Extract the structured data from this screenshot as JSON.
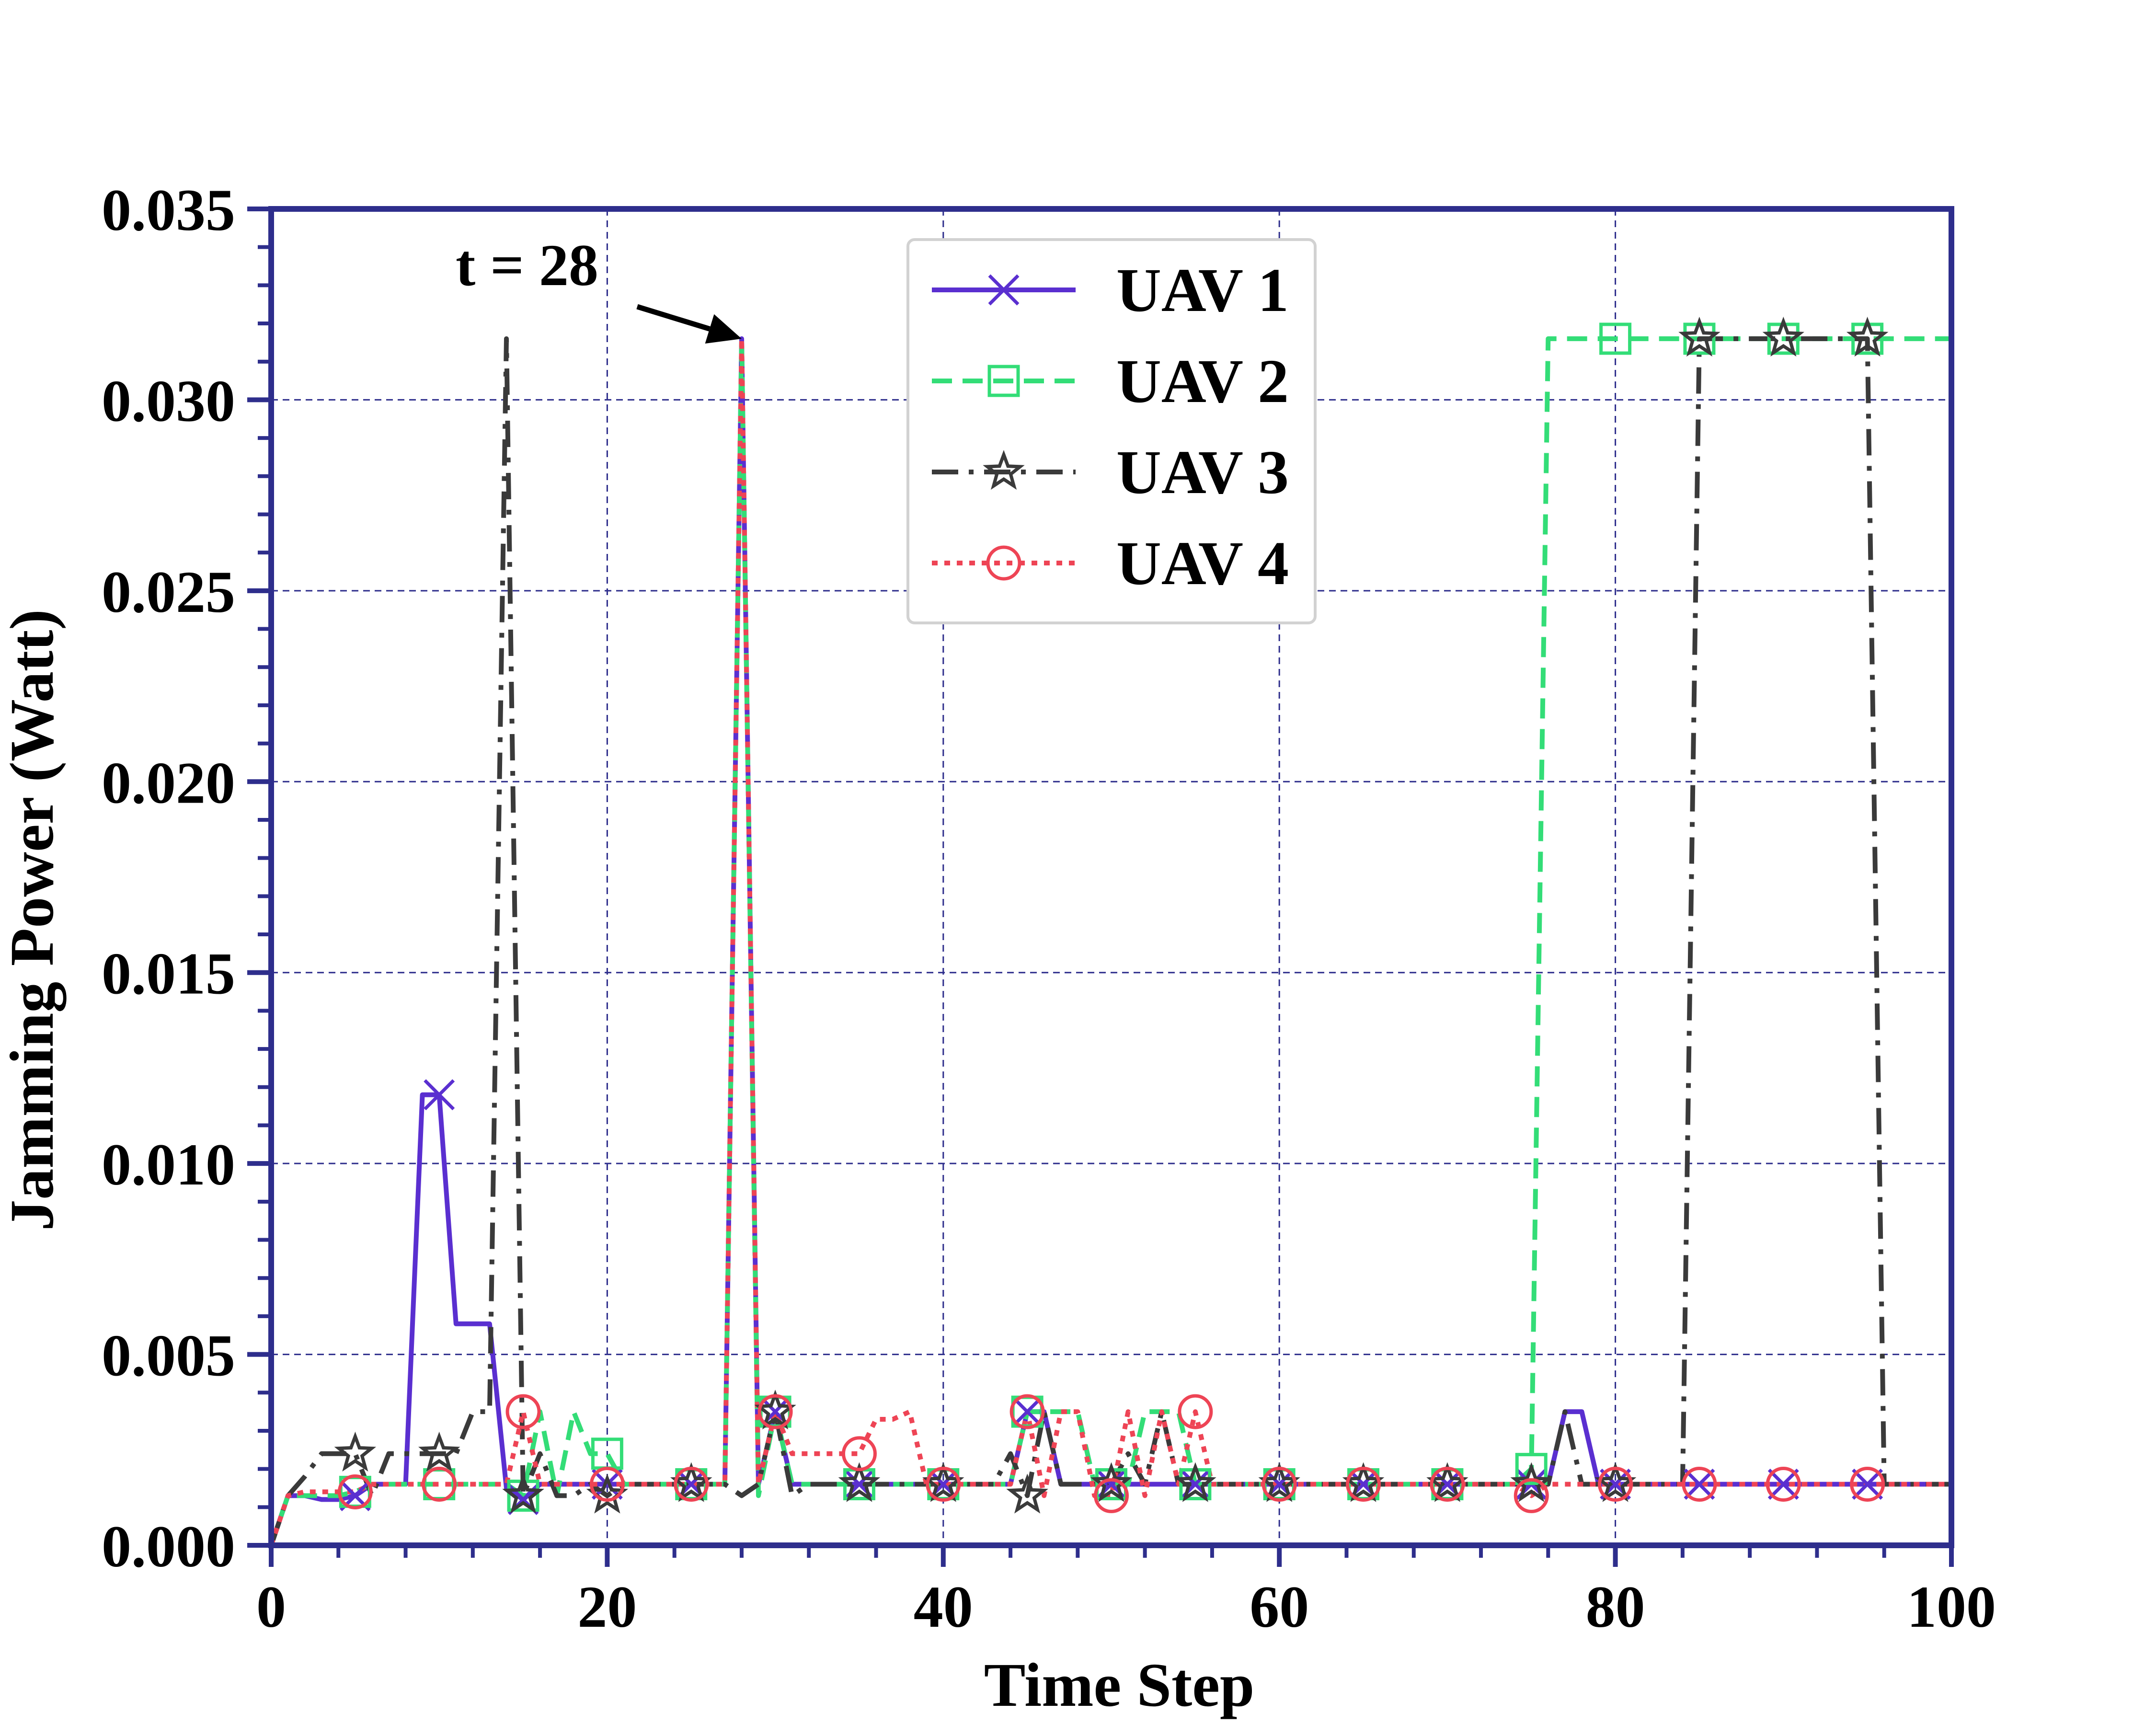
{
  "chart_data": {
    "type": "line",
    "title": "",
    "xlabel": "Time Step",
    "ylabel": "Jamming Power (Watt)",
    "xlim": [
      0,
      100
    ],
    "ylim": [
      0,
      0.035
    ],
    "xticks": [
      "0",
      "20",
      "40",
      "60",
      "80",
      "100"
    ],
    "yticks": [
      "0.000",
      "0.005",
      "0.010",
      "0.015",
      "0.020",
      "0.025",
      "0.030",
      "0.035"
    ],
    "grid": true,
    "legend_position": "top-center",
    "annotation": {
      "text": "t = 28",
      "x": 28,
      "y": 0.0316
    },
    "series": [
      {
        "name": "UAV 1",
        "color": "#5a2fd0",
        "line_style": "solid",
        "marker": "x",
        "x": [
          0,
          1,
          2,
          3,
          4,
          5,
          6,
          7,
          8,
          9,
          10,
          11,
          12,
          13,
          14,
          15,
          16,
          17,
          18,
          19,
          20,
          21,
          22,
          23,
          24,
          25,
          26,
          27,
          28,
          29,
          30,
          31,
          32,
          33,
          34,
          35,
          36,
          37,
          38,
          39,
          40,
          41,
          42,
          43,
          44,
          45,
          46,
          47,
          48,
          49,
          50,
          51,
          52,
          53,
          54,
          55,
          56,
          57,
          58,
          59,
          60,
          61,
          62,
          63,
          64,
          65,
          66,
          67,
          68,
          69,
          70,
          71,
          72,
          73,
          74,
          75,
          76,
          77,
          78,
          79,
          80,
          81,
          82,
          83,
          84,
          85,
          86,
          87,
          88,
          89,
          90,
          91,
          92,
          93,
          94,
          95,
          96,
          97,
          98,
          99,
          100
        ],
        "values": [
          0.0,
          0.0013,
          0.0013,
          0.0012,
          0.0012,
          0.0013,
          0.0016,
          0.0016,
          0.0016,
          0.0118,
          0.0118,
          0.0058,
          0.0058,
          0.0058,
          0.0015,
          0.0012,
          0.0016,
          0.0016,
          0.0016,
          0.0016,
          0.0016,
          0.0016,
          0.0016,
          0.0016,
          0.0016,
          0.0016,
          0.0016,
          0.0016,
          0.0316,
          0.0016,
          0.0035,
          0.0016,
          0.0016,
          0.0016,
          0.0016,
          0.0016,
          0.0016,
          0.0016,
          0.0016,
          0.0016,
          0.0016,
          0.0016,
          0.0016,
          0.0016,
          0.0016,
          0.0035,
          0.0035,
          0.0016,
          0.0016,
          0.0016,
          0.0016,
          0.0016,
          0.0016,
          0.0016,
          0.0016,
          0.0016,
          0.0016,
          0.0016,
          0.0016,
          0.0016,
          0.0016,
          0.0016,
          0.0016,
          0.0016,
          0.0016,
          0.0016,
          0.0016,
          0.0016,
          0.0016,
          0.0016,
          0.0016,
          0.0016,
          0.0016,
          0.0016,
          0.0016,
          0.0016,
          0.0016,
          0.0035,
          0.0035,
          0.0016,
          0.0016,
          0.0016,
          0.0016,
          0.0016,
          0.0016,
          0.0016,
          0.0016,
          0.0016,
          0.0016,
          0.0016,
          0.0016,
          0.0016,
          0.0016,
          0.0016,
          0.0016,
          0.0016,
          0.0016,
          0.0016,
          0.0016,
          0.0016,
          0.0016
        ]
      },
      {
        "name": "UAV 2",
        "color": "#33dd77",
        "line_style": "dashed",
        "marker": "square",
        "x": [
          0,
          1,
          2,
          3,
          4,
          5,
          6,
          7,
          8,
          9,
          10,
          11,
          12,
          13,
          14,
          15,
          16,
          17,
          18,
          19,
          20,
          21,
          22,
          23,
          24,
          25,
          26,
          27,
          28,
          29,
          30,
          31,
          32,
          33,
          34,
          35,
          36,
          37,
          38,
          39,
          40,
          41,
          42,
          43,
          44,
          45,
          46,
          47,
          48,
          49,
          50,
          51,
          52,
          53,
          54,
          55,
          56,
          57,
          58,
          59,
          60,
          61,
          62,
          63,
          64,
          65,
          66,
          67,
          68,
          69,
          70,
          71,
          72,
          73,
          74,
          75,
          76,
          77,
          78,
          79,
          80,
          81,
          82,
          83,
          84,
          85,
          86,
          87,
          88,
          89,
          90,
          91,
          92,
          93,
          94,
          95,
          96,
          97,
          98,
          99,
          100
        ],
        "values": [
          0.0,
          0.0013,
          0.0013,
          0.0013,
          0.0013,
          0.0014,
          0.0016,
          0.0016,
          0.0016,
          0.0016,
          0.0016,
          0.0016,
          0.0016,
          0.0016,
          0.0016,
          0.0013,
          0.0035,
          0.0013,
          0.0035,
          0.0024,
          0.0024,
          0.0016,
          0.0016,
          0.0016,
          0.0016,
          0.0016,
          0.0016,
          0.0016,
          0.0316,
          0.0013,
          0.0035,
          0.0016,
          0.0016,
          0.0016,
          0.0016,
          0.0016,
          0.0016,
          0.0016,
          0.0016,
          0.0016,
          0.0016,
          0.0016,
          0.0016,
          0.0016,
          0.0016,
          0.0035,
          0.0035,
          0.0035,
          0.0035,
          0.0016,
          0.0016,
          0.0016,
          0.0035,
          0.0035,
          0.0035,
          0.0016,
          0.0016,
          0.0016,
          0.0016,
          0.0016,
          0.0016,
          0.0016,
          0.0016,
          0.0016,
          0.0016,
          0.0016,
          0.0016,
          0.0016,
          0.0016,
          0.0016,
          0.0016,
          0.0016,
          0.0016,
          0.0016,
          0.0016,
          0.002,
          0.0316,
          0.0316,
          0.0316,
          0.0316,
          0.0316,
          0.0316,
          0.0316,
          0.0316,
          0.0316,
          0.0316,
          0.0316,
          0.0316,
          0.0316,
          0.0316,
          0.0316,
          0.0316,
          0.0316,
          0.0316,
          0.0316,
          0.0316,
          0.0316,
          0.0316,
          0.0316,
          0.0316,
          0.0316
        ]
      },
      {
        "name": "UAV 3",
        "color": "#3a3a3a",
        "line_style": "dashdot",
        "marker": "star",
        "x": [
          0,
          1,
          2,
          3,
          4,
          5,
          6,
          7,
          8,
          9,
          10,
          11,
          12,
          13,
          14,
          15,
          16,
          17,
          18,
          19,
          20,
          21,
          22,
          23,
          24,
          25,
          26,
          27,
          28,
          29,
          30,
          31,
          32,
          33,
          34,
          35,
          36,
          37,
          38,
          39,
          40,
          41,
          42,
          43,
          44,
          45,
          46,
          47,
          48,
          49,
          50,
          51,
          52,
          53,
          54,
          55,
          56,
          57,
          58,
          59,
          60,
          61,
          62,
          63,
          64,
          65,
          66,
          67,
          68,
          69,
          70,
          71,
          72,
          73,
          74,
          75,
          76,
          77,
          78,
          79,
          80,
          81,
          82,
          83,
          84,
          85,
          86,
          87,
          88,
          89,
          90,
          91,
          92,
          93,
          94,
          95,
          96,
          97,
          98,
          99,
          100
        ],
        "values": [
          0.0,
          0.0013,
          0.0018,
          0.0024,
          0.0024,
          0.0024,
          0.0013,
          0.0024,
          0.0024,
          0.0024,
          0.0024,
          0.0024,
          0.0035,
          0.0035,
          0.0316,
          0.0013,
          0.0024,
          0.0013,
          0.0013,
          0.0016,
          0.0013,
          0.0016,
          0.0016,
          0.0016,
          0.0016,
          0.0016,
          0.0016,
          0.0016,
          0.0013,
          0.0016,
          0.0035,
          0.0013,
          0.0016,
          0.0016,
          0.0016,
          0.0016,
          0.0016,
          0.0016,
          0.0016,
          0.0016,
          0.0016,
          0.0016,
          0.0016,
          0.0016,
          0.0024,
          0.0013,
          0.0035,
          0.0016,
          0.0016,
          0.0016,
          0.0016,
          0.0024,
          0.0016,
          0.0035,
          0.0016,
          0.0016,
          0.0016,
          0.0016,
          0.0016,
          0.0016,
          0.0016,
          0.0016,
          0.0016,
          0.0016,
          0.0016,
          0.0016,
          0.0016,
          0.0016,
          0.0016,
          0.0016,
          0.0016,
          0.0016,
          0.0016,
          0.0016,
          0.0016,
          0.0016,
          0.0016,
          0.0035,
          0.0016,
          0.0016,
          0.0016,
          0.0016,
          0.0016,
          0.0016,
          0.0016,
          0.0316,
          0.0316,
          0.0316,
          0.0316,
          0.0316,
          0.0316,
          0.0316,
          0.0316,
          0.0316,
          0.0316,
          0.0316,
          0.0016,
          0.0016,
          0.0016,
          0.0016,
          0.0016
        ]
      },
      {
        "name": "UAV 4",
        "color": "#ee4455",
        "line_style": "dotted",
        "marker": "circle",
        "x": [
          0,
          1,
          2,
          3,
          4,
          5,
          6,
          7,
          8,
          9,
          10,
          11,
          12,
          13,
          14,
          15,
          16,
          17,
          18,
          19,
          20,
          21,
          22,
          23,
          24,
          25,
          26,
          27,
          28,
          29,
          30,
          31,
          32,
          33,
          34,
          35,
          36,
          37,
          38,
          39,
          40,
          41,
          42,
          43,
          44,
          45,
          46,
          47,
          48,
          49,
          50,
          51,
          52,
          53,
          54,
          55,
          56,
          57,
          58,
          59,
          60,
          61,
          62,
          63,
          64,
          65,
          66,
          67,
          68,
          69,
          70,
          71,
          72,
          73,
          74,
          75,
          76,
          77,
          78,
          79,
          80,
          81,
          82,
          83,
          84,
          85,
          86,
          87,
          88,
          89,
          90,
          91,
          92,
          93,
          94,
          95,
          96,
          97,
          98,
          99,
          100
        ],
        "values": [
          0.0,
          0.0013,
          0.0014,
          0.0014,
          0.0014,
          0.0014,
          0.0016,
          0.0016,
          0.0016,
          0.0016,
          0.0016,
          0.0016,
          0.0016,
          0.0016,
          0.0016,
          0.0035,
          0.0016,
          0.0016,
          0.0016,
          0.0016,
          0.0016,
          0.0016,
          0.0016,
          0.0016,
          0.0016,
          0.0016,
          0.0016,
          0.0016,
          0.0316,
          0.0016,
          0.0035,
          0.0024,
          0.0024,
          0.0024,
          0.0024,
          0.0024,
          0.0033,
          0.0033,
          0.0035,
          0.0016,
          0.0016,
          0.0016,
          0.0016,
          0.0016,
          0.0016,
          0.0035,
          0.0013,
          0.0035,
          0.0035,
          0.0013,
          0.0013,
          0.0035,
          0.0013,
          0.0035,
          0.0016,
          0.0035,
          0.0016,
          0.0016,
          0.0016,
          0.0016,
          0.0016,
          0.0016,
          0.0016,
          0.0016,
          0.0016,
          0.0016,
          0.0016,
          0.0016,
          0.0016,
          0.0016,
          0.0016,
          0.0016,
          0.0016,
          0.0016,
          0.0016,
          0.0013,
          0.0016,
          0.0016,
          0.0016,
          0.0016,
          0.0016,
          0.0016,
          0.0016,
          0.0016,
          0.0016,
          0.0016,
          0.0016,
          0.0016,
          0.0016,
          0.0016,
          0.0016,
          0.0016,
          0.0016,
          0.0016,
          0.0016,
          0.0016,
          0.0016,
          0.0016,
          0.0016,
          0.0016,
          0.0016
        ]
      }
    ]
  }
}
